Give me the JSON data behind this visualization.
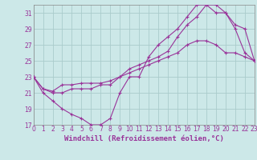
{
  "xlabel": "Windchill (Refroidissement éolien,°C)",
  "bg_color": "#cce8e8",
  "grid_color": "#aacccc",
  "line_color": "#993399",
  "xlim": [
    0,
    23
  ],
  "ylim": [
    17,
    32
  ],
  "xticks": [
    0,
    1,
    2,
    3,
    4,
    5,
    6,
    7,
    8,
    9,
    10,
    11,
    12,
    13,
    14,
    15,
    16,
    17,
    18,
    19,
    20,
    21,
    22,
    23
  ],
  "yticks": [
    17,
    19,
    21,
    23,
    25,
    27,
    29,
    31
  ],
  "curve1_x": [
    0,
    1,
    2,
    3,
    4,
    5,
    6,
    7,
    8,
    9,
    10,
    11,
    12,
    13,
    14,
    15,
    16,
    17,
    18,
    19,
    20,
    21,
    22,
    23
  ],
  "curve1_y": [
    23,
    21,
    20,
    19,
    18.3,
    17.8,
    17,
    17,
    17.8,
    21,
    23,
    23,
    25.5,
    27,
    28,
    29,
    30.5,
    32,
    32,
    31,
    31,
    29,
    26,
    25
  ],
  "curve2_x": [
    0,
    1,
    2,
    3,
    4,
    5,
    6,
    7,
    8,
    9,
    10,
    11,
    12,
    13,
    14,
    15,
    16,
    17,
    18,
    19,
    20,
    21,
    22,
    23
  ],
  "curve2_y": [
    23,
    21.5,
    21.2,
    22,
    22,
    22.2,
    22.2,
    22.2,
    22.5,
    23,
    24,
    24.5,
    25,
    25.5,
    26.2,
    28,
    29.5,
    30.5,
    32,
    32,
    31,
    29.5,
    29,
    25
  ],
  "curve3_x": [
    0,
    1,
    2,
    3,
    4,
    5,
    6,
    7,
    8,
    9,
    10,
    11,
    12,
    13,
    14,
    15,
    16,
    17,
    18,
    19,
    20,
    21,
    22,
    23
  ],
  "curve3_y": [
    23,
    21.5,
    21,
    21,
    21.5,
    21.5,
    21.5,
    22,
    22,
    23,
    23.5,
    24,
    24.5,
    25,
    25.5,
    26,
    27,
    27.5,
    27.5,
    27,
    26,
    26,
    25.5,
    25
  ],
  "tick_fontsize": 5.5,
  "xlabel_fontsize": 6.5
}
